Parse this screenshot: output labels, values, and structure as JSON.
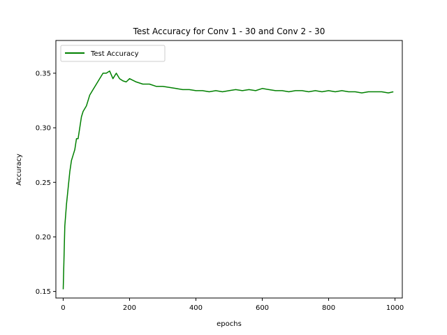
{
  "chart_data": {
    "type": "line",
    "title": "Test Accuracy for Conv 1 - 30 and Conv 2 - 30",
    "xlabel": "epochs",
    "ylabel": "Accuracy",
    "xlim": [
      -22,
      1022
    ],
    "ylim": [
      0.144,
      0.38
    ],
    "xticks": [
      0,
      200,
      400,
      600,
      800,
      1000
    ],
    "xtick_labels": [
      "0",
      "200",
      "400",
      "600",
      "800",
      "1000"
    ],
    "yticks": [
      0.15,
      0.2,
      0.25,
      0.3,
      0.35
    ],
    "ytick_labels": [
      "0.15",
      "0.20",
      "0.25",
      "0.30",
      "0.35"
    ],
    "grid": false,
    "legend_position": "top-left",
    "series": [
      {
        "name": "Test Accuracy",
        "color": "#008000",
        "x": [
          0,
          5,
          10,
          15,
          20,
          25,
          30,
          35,
          40,
          45,
          50,
          55,
          60,
          70,
          80,
          90,
          100,
          110,
          120,
          130,
          140,
          150,
          160,
          170,
          180,
          190,
          200,
          220,
          240,
          260,
          280,
          300,
          320,
          340,
          360,
          380,
          400,
          420,
          440,
          460,
          480,
          500,
          520,
          540,
          560,
          580,
          600,
          620,
          640,
          660,
          680,
          700,
          720,
          740,
          760,
          780,
          800,
          820,
          840,
          860,
          880,
          900,
          920,
          940,
          960,
          980,
          995
        ],
        "y": [
          0.152,
          0.21,
          0.23,
          0.245,
          0.26,
          0.27,
          0.275,
          0.28,
          0.29,
          0.29,
          0.3,
          0.31,
          0.315,
          0.32,
          0.33,
          0.335,
          0.34,
          0.345,
          0.35,
          0.35,
          0.352,
          0.345,
          0.35,
          0.345,
          0.343,
          0.342,
          0.345,
          0.342,
          0.34,
          0.34,
          0.338,
          0.338,
          0.337,
          0.336,
          0.335,
          0.335,
          0.334,
          0.334,
          0.333,
          0.334,
          0.333,
          0.334,
          0.335,
          0.334,
          0.335,
          0.334,
          0.336,
          0.335,
          0.334,
          0.334,
          0.333,
          0.334,
          0.334,
          0.333,
          0.334,
          0.333,
          0.334,
          0.333,
          0.334,
          0.333,
          0.333,
          0.332,
          0.333,
          0.333,
          0.333,
          0.332,
          0.333
        ]
      }
    ]
  }
}
